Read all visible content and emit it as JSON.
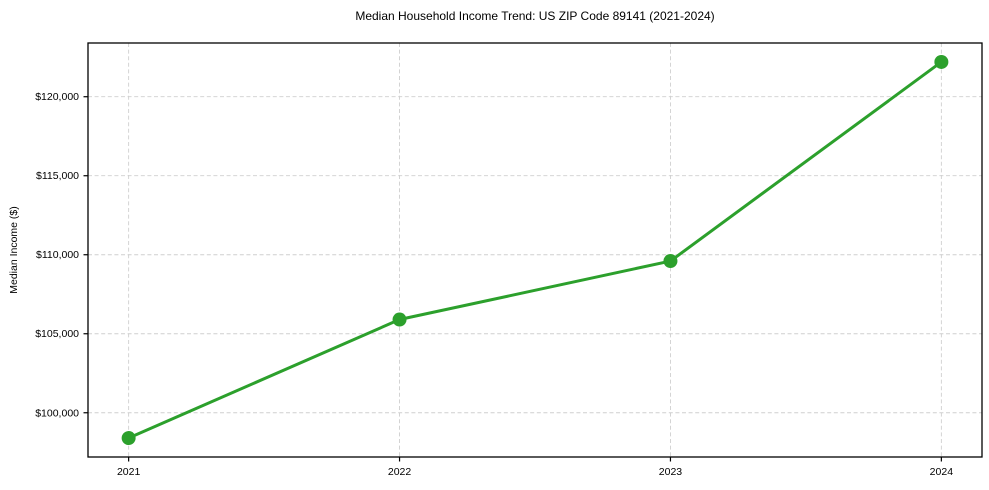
{
  "chart_data": {
    "type": "line",
    "title": "Median Household Income Trend: US ZIP Code 89141 (2021-2024)",
    "xlabel": "",
    "ylabel": "Median Income ($)",
    "x": [
      2021,
      2022,
      2023,
      2024
    ],
    "series": [
      {
        "name": "Median Household Income",
        "values": [
          98400,
          105900,
          109600,
          122200
        ],
        "color": "#2ca02c",
        "marker": "circle",
        "marker_radius": 7,
        "line_width": 3
      }
    ],
    "xticks": [
      2021,
      2022,
      2023,
      2024
    ],
    "xtick_labels": [
      "2021",
      "2022",
      "2023",
      "2024"
    ],
    "yticks": [
      100000,
      105000,
      110000,
      115000,
      120000
    ],
    "ytick_labels": [
      "$100,000",
      "$105,000",
      "$110,000",
      "$115,000",
      "$120,000"
    ],
    "xlim": [
      2020.85,
      2024.15
    ],
    "ylim": [
      97200,
      123400
    ],
    "grid": true,
    "grid_color": "#cfcfcf",
    "axis_color": "#000000",
    "tick_label_color": "#000000",
    "background": "#ffffff",
    "legend": "none"
  }
}
